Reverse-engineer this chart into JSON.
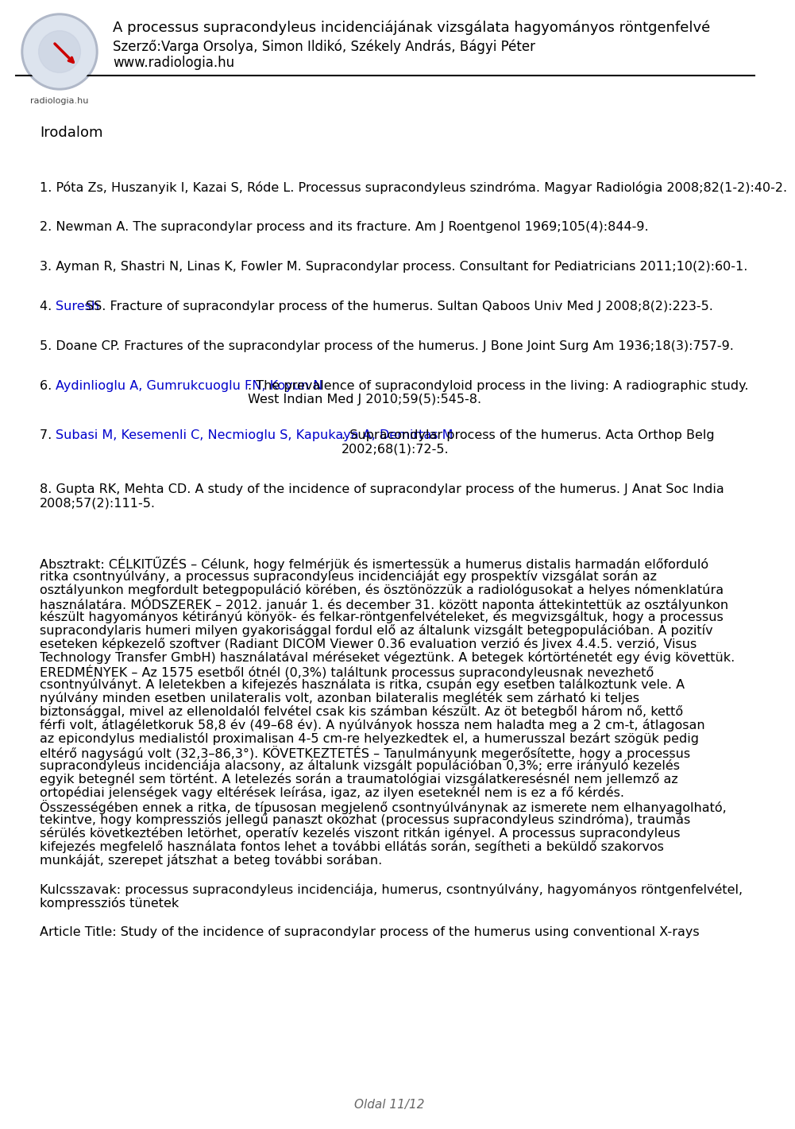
{
  "title_line1": "A processus supracondyleus incidenciájának vizsgálata hagyományos röntgenfelvé",
  "title_line2": "Szerző:Varga Orsolya, Simon Ildikó, Székely András, Bágyi Péter",
  "title_line3": "www.radiologia.hu",
  "section_title": "Irodalom",
  "references": [
    {
      "number": "1.",
      "text": "Póta Zs, Huszanyik I, Kazai S, Róde L. Processus supracondyleus szindróma. Magyar Radiológia 2008;82(1-2):40-2.",
      "has_link": false
    },
    {
      "number": "2.",
      "text": "Newman A. The supracondylar process and its fracture. Am J Roentgenol 1969;105(4):844-9.",
      "has_link": false
    },
    {
      "number": "3.",
      "text": "Ayman R, Shastri N, Linas K, Fowler M. Supracondylar process. Consultant for Pediatricians 2011;10(2):60-1.",
      "has_link": false
    },
    {
      "number": "4.",
      "link_text": "Suresh",
      "rest_text": "SS. Fracture of supracondylar process of the humerus. Sultan Qaboos Univ Med J 2008;8(2):223-5.",
      "has_link": true
    },
    {
      "number": "5.",
      "text": "Doane CP. Fractures of the supracondylar process of the humerus. J Bone Joint Surg Am 1936;18(3):757-9.",
      "has_link": false
    },
    {
      "number": "6.",
      "link_text": "Aydinlioglu A, Gumrukcuoglu FN, Koyun N",
      "rest_text": ". The prevalence of supracondyloid process in the living: A radiographic study.\nWest Indian Med J 2010;59(5):545-8.",
      "has_link": true
    },
    {
      "number": "7.",
      "link_text": "Subasi M, Kesemenli C, Necmioglu S, Kapukaya A, Demirtas M",
      "rest_text": ". Supracondylar process of the humerus. Acta Orthop Belg\n2002;68(1):72-5.",
      "has_link": true
    },
    {
      "number": "8.",
      "text": "Gupta RK, Mehta CD. A study of the incidence of supracondylar process of the humerus. J Anat Soc India\n2008;57(2):111-5.",
      "has_link": false
    }
  ],
  "abstract_bold": "Absztrakt: CÉLKITŰZÉS –",
  "abstract_text": " Célunk, hogy felmérjük és ismertessük a humerus distalis harmadán előforduló ritka csontnyúlvány, a processus supracondyleus incidenciáját egy prospektív vizsgálat során az osztályunkon megfordult betegpopuláció körében, és ösztönözzük a radiológusokat a helyes nómenklatúra használatára. MÓDSZEREK – 2012. január 1. és december 31. között naponta áttekintettük az osztályunkon készült hagyományos kétirányú könyök- és felkar-röntgenfelvételeket, és megvizsgáltuk, hogy a processus supracondylaris humeri milyen gyakorisággal fordul elő az általunk vizsgált betegpopulációban. A pozitív eseteken képkezelő szoftver (Radiant DICOM Viewer 0.36 evaluation verzió és Jivex 4.4.5. verzió, Visus Technology Transfer GmbH) használatával méréseket végeztünk. A betegek kórtörténetét egy évig követtük. EREDMÉNYEK – Az 1575 esetből ótnél (0,3%) találtunk processus supracondyleusnak nevezhető csontnyúlványt. A leletekben a kifejezés használata is ritka, csupán egy esetben találkoztunk vele. A nyúlvány minden esetben unilateralis volt, azonban bilateralis megléték sem zárható ki teljes biztonsággal, mivel az ellenoldalól felvétel csak kis számban készült. Az öt betegből három nő, kettő férfi volt, átlagéletkoruk 58,8 év (49–68 év). A nyúlványok hossza nem haladta meg a 2 cm-t, átlagosan az epicondylus medialistól proximalisan 4-5 cm-re helyezkedtek el, a humerusszal bezárt szögük pedig eltérő nagyságú volt (32,3–86,3°). KÖVETKEZTETÉS – Tanulmányunk megerősítette, hogy a processus supracondyleus incidenciája alacsony, az általunk vizsgált populációban 0,3%; erre irányuló kezelés egyik betegnél sem történt. A letelezés során a traumatológiai vizsgálatkeresésnél nem jellemző az ortopédiai jelenségek vagy eltérések leírása, igaz, az ilyen eseteknél nem is ez a fő kérdés. Összességében ennek a ritka, de típusosan megjelenő csontnyúlványnak az ismerete nem elhanyagolható, tekintve, hogy kompressziós jellegű panaszt okozhat (processus supracondyleus szindróma), traumás sérülés következtében letörhet, operatív kezelés viszont ritkán igényel. A processus supracondyleus kifejezés megfelelő használata fontos lehet a további ellátás során, segítheti a beküldő szakorvos munkáját, szerepet játszhat a beteg további sorában.",
  "kulcsszavak_bold": "Kulcsszavak:",
  "kulcsszavak_text": " processus supracondyleus incidenciája, humerus, csontnyúlvány, hagyományos röntgenfelvétel, kompressziós tünetek",
  "article_title": "Article Title: Study of the incidence of supracondylar process of the humerus using conventional X-rays",
  "page_footer": "Oldal 11/12",
  "bg_color": "#ffffff",
  "text_color": "#000000",
  "link_color": "#0000cc",
  "header_line_color": "#000000"
}
